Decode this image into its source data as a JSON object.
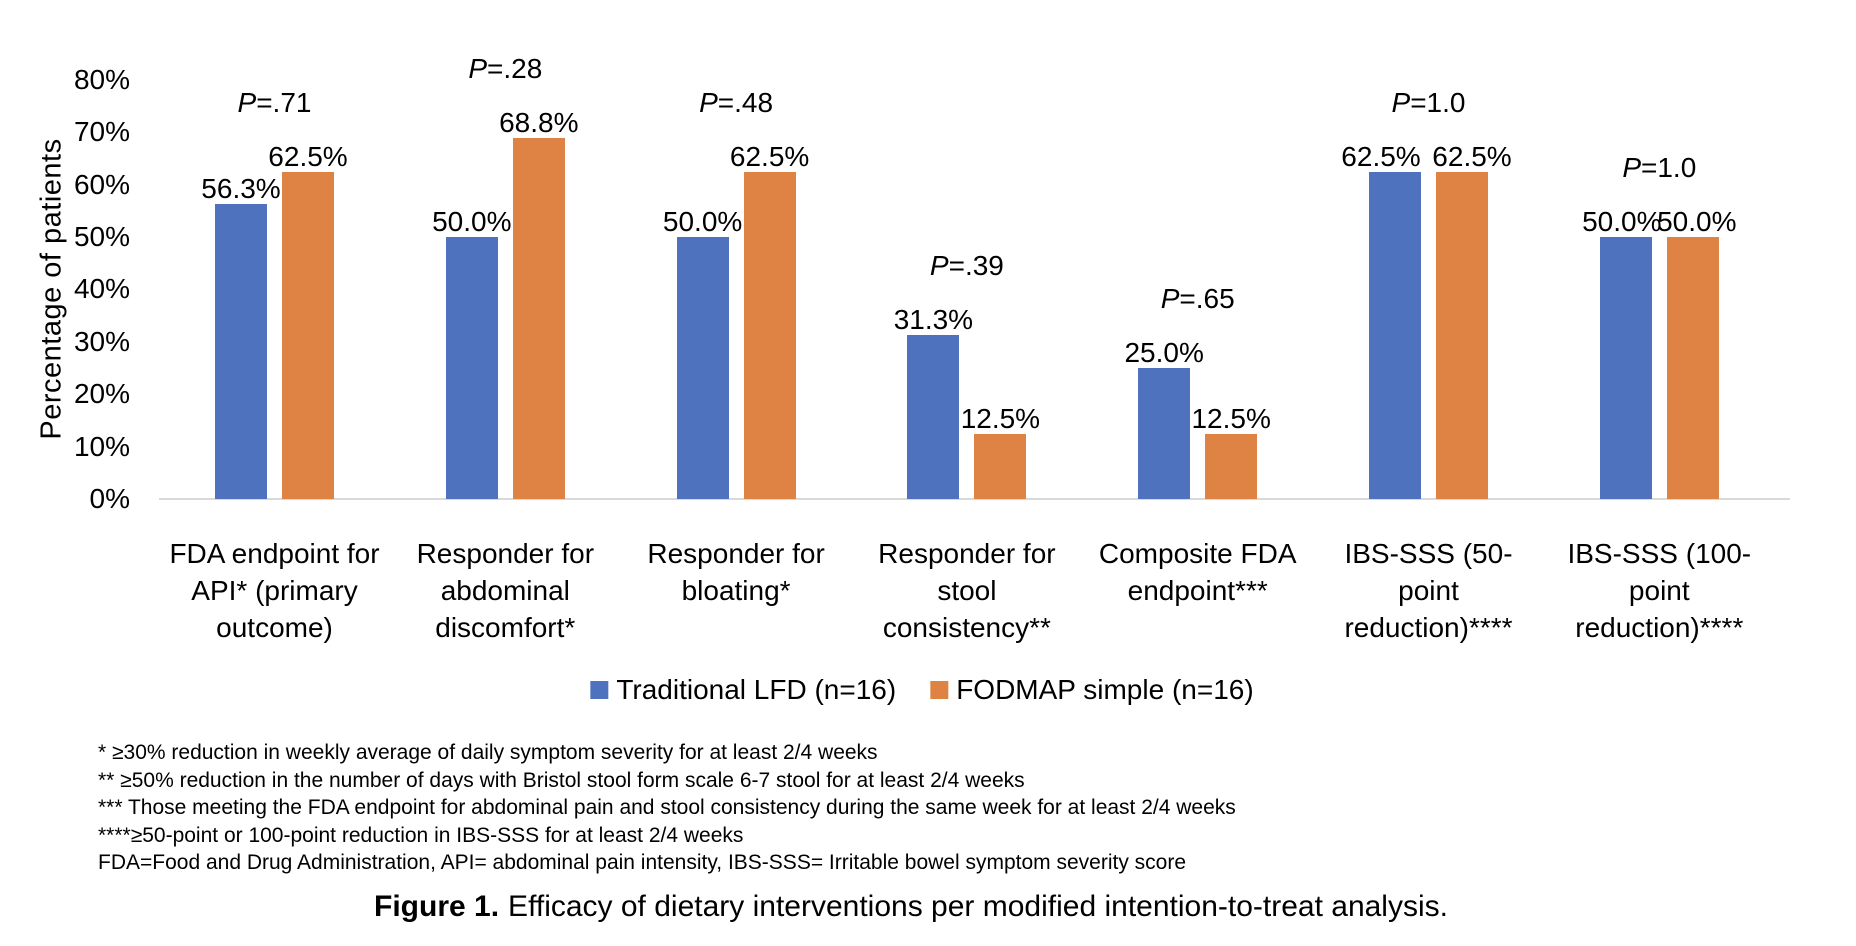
{
  "figure": {
    "caption_label": "Figure 1.",
    "caption_text": "Efficacy of dietary interventions per modified intention-to-treat analysis."
  },
  "colors": {
    "traditional_blue": "#4F72BE",
    "fodmap_orange": "#DF8345",
    "axis_line": "#D9D9D9",
    "text": "#000000"
  },
  "chart_data": {
    "type": "bar",
    "title": "",
    "xlabel": "",
    "ylabel": "Percentage of patients",
    "ylim": [
      0,
      80
    ],
    "ytick_step": 10,
    "yticks": [
      "0%",
      "10%",
      "20%",
      "30%",
      "40%",
      "50%",
      "60%",
      "70%",
      "80%"
    ],
    "grid": false,
    "legend_position": "bottom",
    "categories": [
      [
        "FDA endpoint for",
        "API* (primary",
        "outcome)"
      ],
      [
        "Responder for",
        "abdominal",
        "discomfort*"
      ],
      [
        "Responder for",
        "bloating*"
      ],
      [
        "Responder for",
        "stool",
        "consistency**"
      ],
      [
        "Composite FDA",
        "endpoint***"
      ],
      [
        "IBS-SSS (50-",
        "point",
        "reduction)****"
      ],
      [
        "IBS-SSS (100-",
        "point",
        "reduction)****"
      ]
    ],
    "series": [
      {
        "name": "Traditional LFD (n=16)",
        "color": "#4F72BE",
        "values": [
          56.3,
          50.0,
          50.0,
          31.3,
          25.0,
          62.5,
          50.0
        ],
        "labels": [
          "56.3%",
          "50.0%",
          "50.0%",
          "31.3%",
          "25.0%",
          "62.5%",
          "50.0%"
        ]
      },
      {
        "name": "FODMAP simple (n=16)",
        "color": "#DF8345",
        "values": [
          62.5,
          68.8,
          62.5,
          12.5,
          12.5,
          62.5,
          50.0
        ],
        "labels": [
          "62.5%",
          "68.8%",
          "62.5%",
          "12.5%",
          "12.5%",
          "62.5%",
          "50.0%"
        ]
      }
    ],
    "p_values": [
      "P=.71",
      "P=.28",
      "P=.48",
      "P=.39",
      "P=.65",
      "P=1.0",
      "P=1.0"
    ]
  },
  "footnotes": [
    "* ≥30% reduction in weekly average of daily symptom severity for at least 2/4 weeks",
    "** ≥50% reduction in the number of days with Bristol stool form scale 6-7 stool for at least 2/4 weeks",
    "*** Those meeting the FDA endpoint for abdominal pain and stool consistency during the same week for at least 2/4 weeks",
    "****≥50-point or 100-point reduction in IBS-SSS for at least 2/4 weeks",
    "FDA=Food and Drug Administration, API= abdominal pain intensity, IBS-SSS= Irritable bowel symptom severity score"
  ]
}
